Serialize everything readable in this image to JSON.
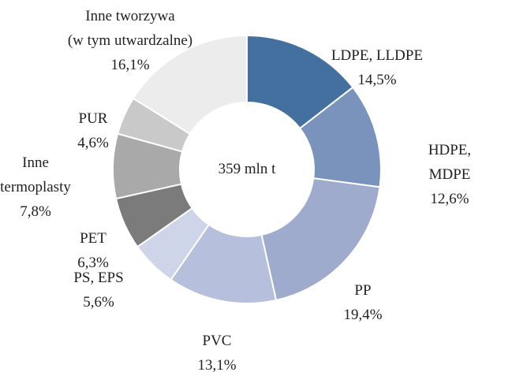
{
  "chart_data": {
    "type": "donut",
    "center_label": "359 mln t",
    "categories": [
      "LDPE, LLDPE",
      "HDPE, MDPE",
      "PP",
      "PVC",
      "PS, EPS",
      "PET",
      "Inne\ntermoplasty",
      "PUR",
      "Inne tworzywa\n(w tym utwardzalne)"
    ],
    "values": [
      14.5,
      12.6,
      19.4,
      13.1,
      5.6,
      6.3,
      7.8,
      4.6,
      16.1
    ],
    "value_labels": [
      "14,5%",
      "12,6%",
      "19,4%",
      "13,1%",
      "5,6%",
      "6,3%",
      "7,8%",
      "4,6%",
      "16,1%"
    ],
    "colors": [
      "#44709f",
      "#7a93bc",
      "#9eabcc",
      "#b6bfdc",
      "#cfd5e9",
      "#7b7b7b",
      "#a9a9a9",
      "#c9c9c9",
      "#ececec"
    ]
  }
}
